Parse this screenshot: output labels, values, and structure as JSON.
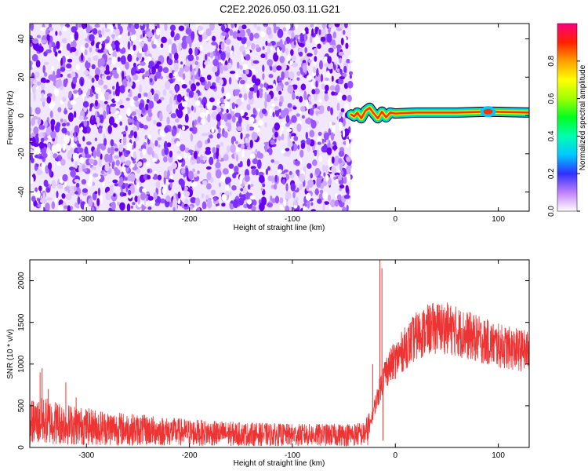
{
  "title": "C2E2.2026.050.03.11.G21",
  "chart_data": [
    {
      "type": "heatmap",
      "xlabel": "Height of straight line (km)",
      "ylabel": "Frequency (Hz)",
      "xlim": [
        -355,
        130
      ],
      "ylim": [
        -50,
        48
      ],
      "x_ticks": [
        -300,
        -200,
        -100,
        0,
        100
      ],
      "y_ticks": [
        -40,
        -20,
        0,
        20,
        40
      ],
      "noise_region_x": [
        -355,
        -43
      ],
      "signal_trace": [
        {
          "x": -43,
          "y": 0.5
        },
        {
          "x": -40,
          "y": -0.5
        },
        {
          "x": -37,
          "y": 1.5
        },
        {
          "x": -33,
          "y": -1.5
        },
        {
          "x": -29,
          "y": 2.5
        },
        {
          "x": -25,
          "y": 4
        },
        {
          "x": -21,
          "y": 1
        },
        {
          "x": -17,
          "y": -1.5
        },
        {
          "x": -13,
          "y": 2
        },
        {
          "x": -9,
          "y": -1
        },
        {
          "x": -5,
          "y": 1.5
        },
        {
          "x": 0,
          "y": 1
        },
        {
          "x": 20,
          "y": 1.5
        },
        {
          "x": 60,
          "y": 1.5
        },
        {
          "x": 90,
          "y": 2
        },
        {
          "x": 130,
          "y": 1.5
        }
      ],
      "colorbar": {
        "label": "Normalized spectral amplitude",
        "range": [
          0,
          1
        ],
        "ticks": [
          0.0,
          0.2,
          0.4,
          0.6,
          0.8
        ]
      },
      "grid": false
    },
    {
      "type": "line",
      "xlabel": "Height of straight line (km)",
      "ylabel": "SNR (10 * v/v)",
      "xlim": [
        -355,
        130
      ],
      "ylim": [
        0,
        2250
      ],
      "x_ticks": [
        -300,
        -200,
        -100,
        0,
        100
      ],
      "y_ticks": [
        0,
        500,
        1000,
        1500,
        2000
      ],
      "color": "#ee3333",
      "envelope": [
        {
          "x": -355,
          "y": 300
        },
        {
          "x": -340,
          "y": 320
        },
        {
          "x": -320,
          "y": 280
        },
        {
          "x": -300,
          "y": 250
        },
        {
          "x": -250,
          "y": 210
        },
        {
          "x": -200,
          "y": 180
        },
        {
          "x": -150,
          "y": 160
        },
        {
          "x": -100,
          "y": 150
        },
        {
          "x": -60,
          "y": 150
        },
        {
          "x": -30,
          "y": 160
        },
        {
          "x": -25,
          "y": 250
        },
        {
          "x": -20,
          "y": 500
        },
        {
          "x": -15,
          "y": 700
        },
        {
          "x": -10,
          "y": 900
        },
        {
          "x": 0,
          "y": 1050
        },
        {
          "x": 10,
          "y": 1200
        },
        {
          "x": 20,
          "y": 1330
        },
        {
          "x": 30,
          "y": 1400
        },
        {
          "x": 40,
          "y": 1440
        },
        {
          "x": 50,
          "y": 1430
        },
        {
          "x": 60,
          "y": 1390
        },
        {
          "x": 80,
          "y": 1300
        },
        {
          "x": 100,
          "y": 1220
        },
        {
          "x": 115,
          "y": 1180
        },
        {
          "x": 130,
          "y": 1150
        }
      ],
      "spikes": [
        {
          "x": -345,
          "y": 900
        },
        {
          "x": -343,
          "y": 950
        },
        {
          "x": -337,
          "y": 700
        },
        {
          "x": -320,
          "y": 780
        },
        {
          "x": -310,
          "y": 600
        },
        {
          "x": -15,
          "y": 2250
        },
        {
          "x": -13,
          "y": 2150
        },
        {
          "x": -12,
          "y": 80
        },
        {
          "x": -22,
          "y": 1000
        }
      ],
      "grid": false
    }
  ]
}
